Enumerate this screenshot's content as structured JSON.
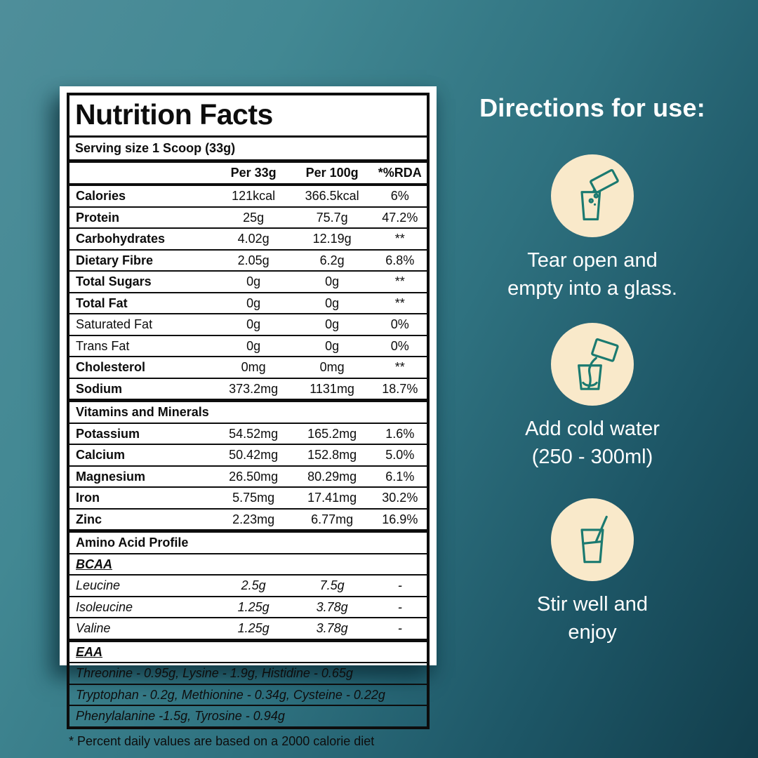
{
  "colors": {
    "background_top_left": "#4f8e9a",
    "background_bottom_right": "#123e4c",
    "label_background": "#ffffff",
    "label_ink": "#0d0d0d",
    "circle_fill": "#f9e9ca",
    "icon_stroke": "#1b7a70",
    "directions_text": "#ffffff"
  },
  "label": {
    "title": "Nutrition Facts",
    "serving": "Serving size 1 Scoop (33g)",
    "columns": [
      "",
      "Per 33g",
      "Per 100g",
      "*%RDA"
    ],
    "rows": [
      {
        "type": "row",
        "name": "Calories",
        "per33": "121kcal",
        "per100": "366.5kcal",
        "rda": "6%",
        "bold": true
      },
      {
        "type": "row",
        "name": "Protein",
        "per33": "25g",
        "per100": "75.7g",
        "rda": "47.2%",
        "bold": true
      },
      {
        "type": "row",
        "name": "Carbohydrates",
        "per33": "4.02g",
        "per100": "12.19g",
        "rda": "**",
        "bold": true
      },
      {
        "type": "row",
        "name": "Dietary Fibre",
        "per33": "2.05g",
        "per100": "6.2g",
        "rda": "6.8%",
        "bold": true
      },
      {
        "type": "row",
        "name": "Total Sugars",
        "per33": "0g",
        "per100": "0g",
        "rda": "**",
        "bold": true
      },
      {
        "type": "row",
        "name": "Total Fat",
        "per33": "0g",
        "per100": "0g",
        "rda": "**",
        "bold": true
      },
      {
        "type": "row",
        "name": "Saturated Fat",
        "per33": "0g",
        "per100": "0g",
        "rda": "0%",
        "bold": false
      },
      {
        "type": "row",
        "name": "Trans Fat",
        "per33": "0g",
        "per100": "0g",
        "rda": "0%",
        "bold": false
      },
      {
        "type": "row",
        "name": "Cholesterol",
        "per33": "0mg",
        "per100": "0mg",
        "rda": "**",
        "bold": true
      },
      {
        "type": "row",
        "name": "Sodium",
        "per33": "373.2mg",
        "per100": "1131mg",
        "rda": "18.7%",
        "bold": true,
        "thick": true
      },
      {
        "type": "section",
        "name": "Vitamins and Minerals"
      },
      {
        "type": "row",
        "name": "Potassium",
        "per33": "54.52mg",
        "per100": "165.2mg",
        "rda": "1.6%",
        "bold": true
      },
      {
        "type": "row",
        "name": "Calcium",
        "per33": "50.42mg",
        "per100": "152.8mg",
        "rda": "5.0%",
        "bold": true
      },
      {
        "type": "row",
        "name": "Magnesium",
        "per33": "26.50mg",
        "per100": "80.29mg",
        "rda": "6.1%",
        "bold": true
      },
      {
        "type": "row",
        "name": "Iron",
        "per33": "5.75mg",
        "per100": "17.41mg",
        "rda": "30.2%",
        "bold": true
      },
      {
        "type": "row",
        "name": "Zinc",
        "per33": "2.23mg",
        "per100": "6.77mg",
        "rda": "16.9%",
        "bold": true,
        "thick": true
      },
      {
        "type": "section",
        "name": "Amino Acid Profile"
      },
      {
        "type": "subsection",
        "name": "BCAA"
      },
      {
        "type": "row",
        "name": "Leucine",
        "per33": "2.5g",
        "per100": "7.5g",
        "rda": "-",
        "italic": true
      },
      {
        "type": "row",
        "name": "Isoleucine",
        "per33": "1.25g",
        "per100": "3.78g",
        "rda": "-",
        "italic": true
      },
      {
        "type": "row",
        "name": "Valine",
        "per33": "1.25g",
        "per100": "3.78g",
        "rda": "-",
        "italic": true,
        "thick": true
      },
      {
        "type": "subsection",
        "name": "EAA"
      },
      {
        "type": "span",
        "name": "Threonine - 0.95g, Lysine - 1.9g, Histidine - 0.65g"
      },
      {
        "type": "span",
        "name": "Tryptophan - 0.2g, Methionine - 0.34g, Cysteine - 0.22g"
      },
      {
        "type": "span",
        "name": "Phenylalanine -1.5g, Tyrosine - 0.94g"
      }
    ],
    "footnote": "* Percent daily values are based on a 2000 calorie diet"
  },
  "directions": {
    "heading": "Directions for use:",
    "steps": [
      {
        "icon": "sachet-pour-icon",
        "line1": "Tear open and",
        "line2": "empty into a glass."
      },
      {
        "icon": "water-pour-icon",
        "line1": "Add cold water",
        "line2": "(250 - 300ml)"
      },
      {
        "icon": "stir-glass-icon",
        "line1": "Stir well and",
        "line2": "enjoy"
      }
    ]
  }
}
